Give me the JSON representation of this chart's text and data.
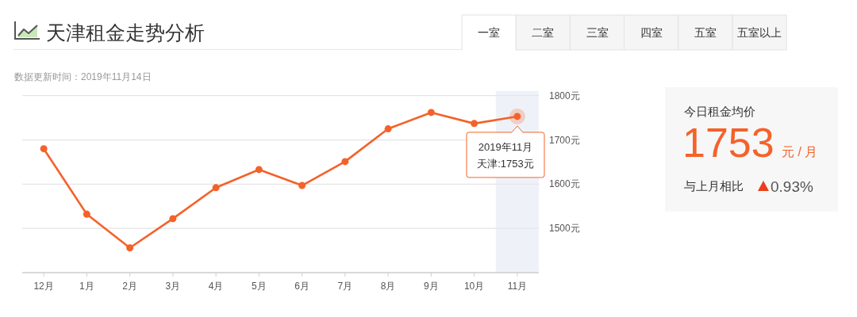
{
  "chart_data": [
    {
      "type": "line",
      "title": "天津租金走势分析",
      "subtitle": "数据更新时间：2019年11月14日",
      "categories": [
        "12月",
        "1月",
        "2月",
        "3月",
        "4月",
        "5月",
        "6月",
        "7月",
        "8月",
        "9月",
        "10月",
        "11月"
      ],
      "values": [
        1680,
        1532,
        1456,
        1522,
        1592,
        1633,
        1597,
        1651,
        1725,
        1762,
        1737,
        1753
      ],
      "color": "#f4622a",
      "ylim": [
        1400,
        1800
      ],
      "yticks": [
        {
          "value": 1400,
          "label": null
        },
        {
          "value": 1500,
          "label": "1500元"
        },
        {
          "value": 1600,
          "label": "1600元"
        },
        {
          "value": 1700,
          "label": "1700元"
        },
        {
          "value": 1800,
          "label": "1800元"
        }
      ],
      "grid": "y",
      "marker": "circle",
      "bands": [
        {
          "axis": "x",
          "from": "11月",
          "to": "11月",
          "color": "#eef2f8"
        }
      ],
      "annotations": [
        {
          "text": "2019年11月天津:1753元",
          "x": "11月",
          "y": 1753
        },
        "一室",
        "二室",
        "三室",
        "四室",
        "五室",
        "五室以上"
      ]
    },
    {
      "type": "other",
      "title": "今日租金均价",
      "annotations": [
        "1753",
        "元 / 月",
        "与上月相比",
        "0.93%"
      ]
    }
  ]
}
